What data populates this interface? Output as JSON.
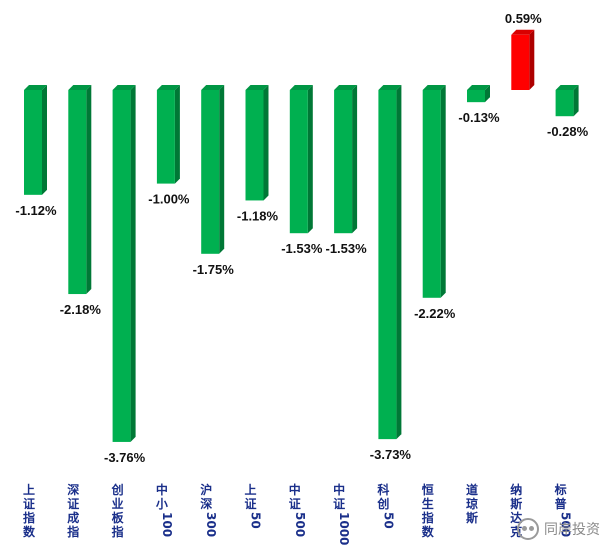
{
  "chart_data": {
    "type": "bar",
    "categories": [
      "上证指数",
      "深证成指",
      "创业板指",
      "中小100",
      "沪深300",
      "上证50",
      "中证500",
      "中证1000",
      "科创50",
      "恒生指数",
      "道琼斯",
      "纳斯达克",
      "标普500"
    ],
    "values": [
      -1.12,
      -2.18,
      -3.76,
      -1.0,
      -1.75,
      -1.18,
      -1.53,
      -1.53,
      -3.73,
      -2.22,
      -0.13,
      0.59,
      -0.28
    ],
    "value_labels": [
      "-1.12%",
      "-2.18%",
      "-3.76%",
      "-1.00%",
      "-1.75%",
      "-1.18%",
      "-1.53%",
      "-1.53%",
      "-3.73%",
      "-2.22%",
      "-0.13%",
      "0.59%",
      "-0.28%"
    ],
    "unit": "%",
    "colors": {
      "negative": "#00b050",
      "positive": "#ff0000"
    },
    "style": "3d-bar",
    "grid": false,
    "legend": "none"
  },
  "watermark": {
    "text": "同岸投资",
    "icon": "wechat-icon"
  }
}
